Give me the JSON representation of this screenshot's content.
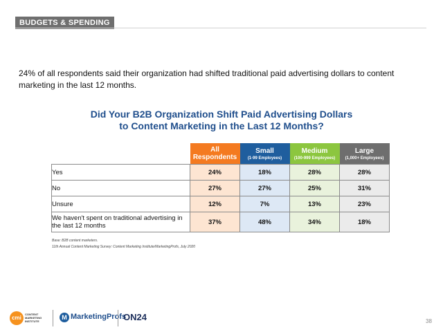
{
  "section": {
    "tab_label": "BUDGETS & SPENDING"
  },
  "intro": "24% of all respondents said their organization had shifted traditional paid advertising dollars to content marketing in the last 12 months.",
  "chart": {
    "title_line1": "Did Your B2B Organization Shift Paid Advertising Dollars",
    "title_line2": "to Content Marketing in the Last 12 Months?"
  },
  "table": {
    "columns": [
      {
        "label": "All Respondents",
        "sub": "",
        "color": "#f47a20"
      },
      {
        "label": "Small",
        "sub": "(1-99 Employees)",
        "color": "#1f5e9e"
      },
      {
        "label": "Medium",
        "sub": "(100-999 Employees)",
        "color": "#8cc63f"
      },
      {
        "label": "Large",
        "sub": "(1,000+ Employees)",
        "color": "#6e6e6e"
      }
    ],
    "rows": [
      {
        "label": "Yes",
        "values": [
          "24%",
          "18%",
          "28%",
          "28%"
        ]
      },
      {
        "label": "No",
        "values": [
          "27%",
          "27%",
          "25%",
          "31%"
        ]
      },
      {
        "label": "Unsure",
        "values": [
          "12%",
          "7%",
          "13%",
          "23%"
        ]
      },
      {
        "label": "We haven't spent on traditional advertising in the last 12 months",
        "values": [
          "37%",
          "48%",
          "34%",
          "18%"
        ]
      }
    ]
  },
  "notes": {
    "base": "Base: B2B content marketers.",
    "source": "11th Annual Content Marketing Survey: Content Marketing Institute/MarketingProfs, July 2020"
  },
  "logos": {
    "cmi_mark": "cmi",
    "cmi_text": "CONTENT MARKETING INSTITUTE",
    "marketingprofs": "MarketingProfs",
    "on24": "ON24"
  },
  "page_number": "38"
}
